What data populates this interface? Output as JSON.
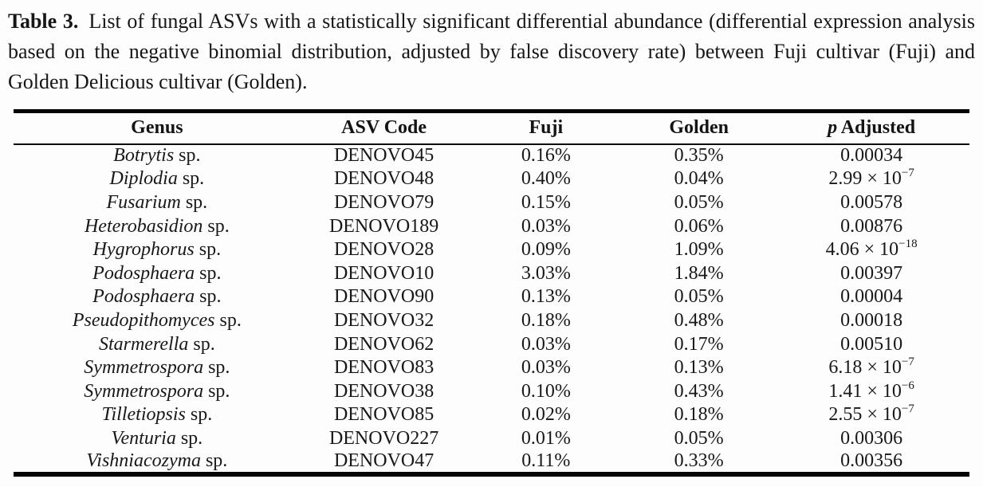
{
  "caption": {
    "label": "Table 3.",
    "text": "List of fungal ASVs with a statistically significant differential abundance (differential expression analysis based on the negative binomial distribution, adjusted by false discovery rate) between Fuji cultivar (Fuji) and Golden Delicious cultivar (Golden)."
  },
  "table": {
    "columns": [
      "Genus",
      "ASV Code",
      "Fuji",
      "Golden",
      {
        "italic": "p",
        "rest": "Adjusted"
      }
    ],
    "rows": [
      {
        "genus": "Botrytis",
        "sp": "sp.",
        "asv": "DENOVO45",
        "fuji": "0.16%",
        "golden": "0.35%",
        "p": "0.00034",
        "p_sup": ""
      },
      {
        "genus": "Diplodia",
        "sp": "sp.",
        "asv": "DENOVO48",
        "fuji": "0.40%",
        "golden": "0.04%",
        "p": "2.99 × 10",
        "p_sup": "−7"
      },
      {
        "genus": "Fusarium",
        "sp": "sp.",
        "asv": "DENOVO79",
        "fuji": "0.15%",
        "golden": "0.05%",
        "p": "0.00578",
        "p_sup": ""
      },
      {
        "genus": "Heterobasidion",
        "sp": "sp.",
        "asv": "DENOVO189",
        "fuji": "0.03%",
        "golden": "0.06%",
        "p": "0.00876",
        "p_sup": ""
      },
      {
        "genus": "Hygrophorus",
        "sp": "sp.",
        "asv": "DENOVO28",
        "fuji": "0.09%",
        "golden": "1.09%",
        "p": "4.06 × 10",
        "p_sup": "−18"
      },
      {
        "genus": "Podosphaera",
        "sp": "sp.",
        "asv": "DENOVO10",
        "fuji": "3.03%",
        "golden": "1.84%",
        "p": "0.00397",
        "p_sup": ""
      },
      {
        "genus": "Podosphaera",
        "sp": "sp.",
        "asv": "DENOVO90",
        "fuji": "0.13%",
        "golden": "0.05%",
        "p": "0.00004",
        "p_sup": ""
      },
      {
        "genus": "Pseudopithomyces",
        "sp": "sp.",
        "asv": "DENOVO32",
        "fuji": "0.18%",
        "golden": "0.48%",
        "p": "0.00018",
        "p_sup": ""
      },
      {
        "genus": "Starmerella",
        "sp": "sp.",
        "asv": "DENOVO62",
        "fuji": "0.03%",
        "golden": "0.17%",
        "p": "0.00510",
        "p_sup": ""
      },
      {
        "genus": "Symmetrospora",
        "sp": "sp.",
        "asv": "DENOVO83",
        "fuji": "0.03%",
        "golden": "0.13%",
        "p": "6.18 × 10",
        "p_sup": "−7"
      },
      {
        "genus": "Symmetrospora",
        "sp": "sp.",
        "asv": "DENOVO38",
        "fuji": "0.10%",
        "golden": "0.43%",
        "p": "1.41 × 10",
        "p_sup": "−6"
      },
      {
        "genus": "Tilletiopsis",
        "sp": "sp.",
        "asv": "DENOVO85",
        "fuji": "0.02%",
        "golden": "0.18%",
        "p": "2.55 × 10",
        "p_sup": "−7"
      },
      {
        "genus": "Venturia",
        "sp": "sp.",
        "asv": "DENOVO227",
        "fuji": "0.01%",
        "golden": "0.05%",
        "p": "0.00306",
        "p_sup": ""
      },
      {
        "genus": "Vishniacozyma",
        "sp": "sp.",
        "asv": "DENOVO47",
        "fuji": "0.11%",
        "golden": "0.33%",
        "p": "0.00356",
        "p_sup": ""
      }
    ]
  }
}
